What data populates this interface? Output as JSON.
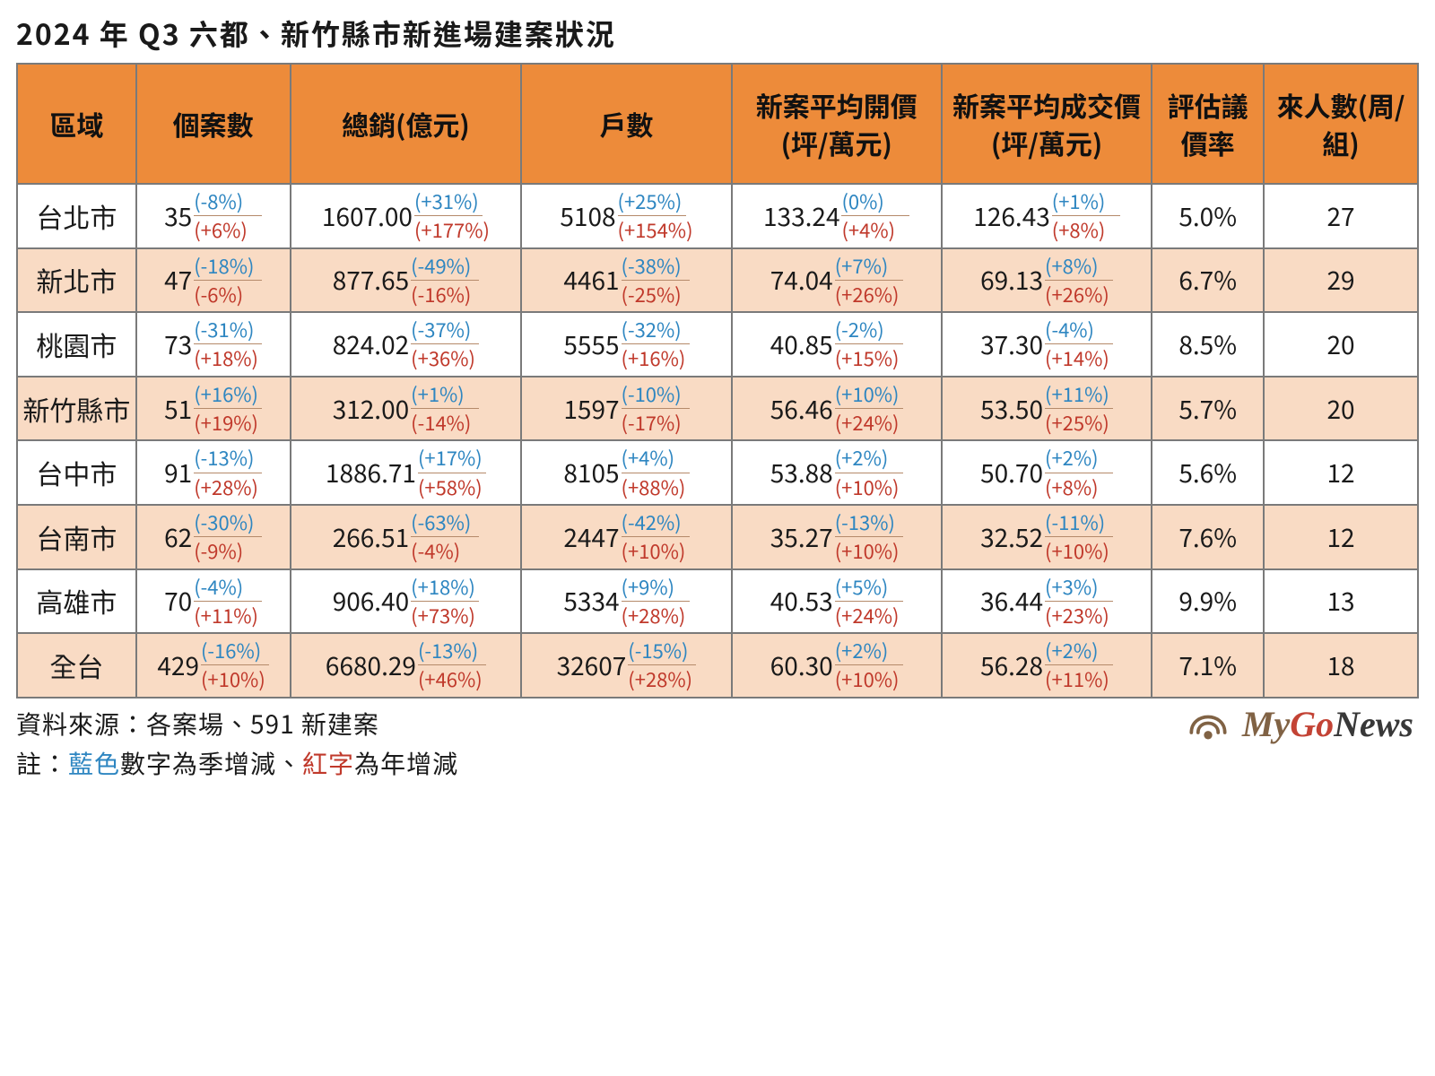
{
  "title": "2024 年 Q3 六都、新竹縣市新進場建案狀況",
  "source_line": "資料來源：各案場、591 新建案",
  "note": {
    "prefix": "註：",
    "blue_text": "藍色",
    "mid1": "數字為季增減、",
    "red_text": "紅字",
    "mid2": "為年增減"
  },
  "colors": {
    "header_bg": "#ed8b3a",
    "header_text": "#111111",
    "row_odd_bg": "#ffffff",
    "row_even_bg": "#f9dbc4",
    "quarter_delta": "#2e86c1",
    "year_delta": "#c0392b",
    "border": "#7a7a7a",
    "sep": "#b58a6a",
    "title_text": "#1a1a1a"
  },
  "logo": {
    "my": "My",
    "go": "Go",
    "news": "News"
  },
  "col_widths_pct": [
    8.5,
    11,
    16.5,
    15,
    15,
    15,
    8,
    11
  ],
  "columns": [
    {
      "label": "區域",
      "type": "region"
    },
    {
      "label": "個案數",
      "type": "delta"
    },
    {
      "label": "總銷(億元)",
      "type": "delta"
    },
    {
      "label": "戶數",
      "type": "delta"
    },
    {
      "label": "新案平均開價(坪/萬元)",
      "type": "delta"
    },
    {
      "label": "新案平均成交價(坪/萬元)",
      "type": "delta"
    },
    {
      "label": "評估議價率",
      "type": "simple"
    },
    {
      "label": "來人數(周/組)",
      "type": "simple"
    }
  ],
  "rows": [
    {
      "region": "台北市",
      "shade": "odd",
      "cases": {
        "v": "35",
        "q": "(-8%)",
        "y": "(+6%)"
      },
      "sales": {
        "v": "1607.00",
        "q": "(+31%)",
        "y": "(+177%)"
      },
      "units": {
        "v": "5108",
        "q": "(+25%)",
        "y": "(+154%)"
      },
      "ask": {
        "v": "133.24",
        "q": "(0%)",
        "y": "(+4%)"
      },
      "deal": {
        "v": "126.43",
        "q": "(+1%)",
        "y": "(+8%)"
      },
      "barg": "5.0%",
      "visitors": "27"
    },
    {
      "region": "新北市",
      "shade": "even",
      "cases": {
        "v": "47",
        "q": "(-18%)",
        "y": "(-6%)"
      },
      "sales": {
        "v": "877.65",
        "q": "(-49%)",
        "y": "(-16%)"
      },
      "units": {
        "v": "4461",
        "q": "(-38%)",
        "y": "(-25%)"
      },
      "ask": {
        "v": "74.04",
        "q": "(+7%)",
        "y": "(+26%)"
      },
      "deal": {
        "v": "69.13",
        "q": "(+8%)",
        "y": "(+26%)"
      },
      "barg": "6.7%",
      "visitors": "29"
    },
    {
      "region": "桃園市",
      "shade": "odd",
      "cases": {
        "v": "73",
        "q": "(-31%)",
        "y": "(+18%)"
      },
      "sales": {
        "v": "824.02",
        "q": "(-37%)",
        "y": "(+36%)"
      },
      "units": {
        "v": "5555",
        "q": "(-32%)",
        "y": "(+16%)"
      },
      "ask": {
        "v": "40.85",
        "q": "(-2%)",
        "y": "(+15%)"
      },
      "deal": {
        "v": "37.30",
        "q": "(-4%)",
        "y": "(+14%)"
      },
      "barg": "8.5%",
      "visitors": "20"
    },
    {
      "region": "新竹縣市",
      "shade": "even",
      "cases": {
        "v": "51",
        "q": "(+16%)",
        "y": "(+19%)"
      },
      "sales": {
        "v": "312.00",
        "q": "(+1%)",
        "y": "(-14%)"
      },
      "units": {
        "v": "1597",
        "q": "(-10%)",
        "y": "(-17%)"
      },
      "ask": {
        "v": "56.46",
        "q": "(+10%)",
        "y": "(+24%)"
      },
      "deal": {
        "v": "53.50",
        "q": "(+11%)",
        "y": "(+25%)"
      },
      "barg": "5.7%",
      "visitors": "20"
    },
    {
      "region": "台中市",
      "shade": "odd",
      "cases": {
        "v": "91",
        "q": "(-13%)",
        "y": "(+28%)"
      },
      "sales": {
        "v": "1886.71",
        "q": "(+17%)",
        "y": "(+58%)"
      },
      "units": {
        "v": "8105",
        "q": "(+4%)",
        "y": "(+88%)"
      },
      "ask": {
        "v": "53.88",
        "q": "(+2%)",
        "y": "(+10%)"
      },
      "deal": {
        "v": "50.70",
        "q": "(+2%)",
        "y": "(+8%)"
      },
      "barg": "5.6%",
      "visitors": "12"
    },
    {
      "region": "台南市",
      "shade": "even",
      "cases": {
        "v": "62",
        "q": "(-30%)",
        "y": "(-9%)"
      },
      "sales": {
        "v": "266.51",
        "q": "(-63%)",
        "y": "(-4%)"
      },
      "units": {
        "v": "2447",
        "q": "(-42%)",
        "y": "(+10%)"
      },
      "ask": {
        "v": "35.27",
        "q": "(-13%)",
        "y": "(+10%)"
      },
      "deal": {
        "v": "32.52",
        "q": "(-11%)",
        "y": "(+10%)"
      },
      "barg": "7.6%",
      "visitors": "12"
    },
    {
      "region": "高雄市",
      "shade": "odd",
      "cases": {
        "v": "70",
        "q": "(-4%)",
        "y": "(+11%)"
      },
      "sales": {
        "v": "906.40",
        "q": "(+18%)",
        "y": "(+73%)"
      },
      "units": {
        "v": "5334",
        "q": "(+9%)",
        "y": "(+28%)"
      },
      "ask": {
        "v": "40.53",
        "q": "(+5%)",
        "y": "(+24%)"
      },
      "deal": {
        "v": "36.44",
        "q": "(+3%)",
        "y": "(+23%)"
      },
      "barg": "9.9%",
      "visitors": "13"
    },
    {
      "region": "全台",
      "shade": "even",
      "cases": {
        "v": "429",
        "q": "(-16%)",
        "y": "(+10%)"
      },
      "sales": {
        "v": "6680.29",
        "q": "(-13%)",
        "y": "(+46%)"
      },
      "units": {
        "v": "32607",
        "q": "(-15%)",
        "y": "(+28%)"
      },
      "ask": {
        "v": "60.30",
        "q": "(+2%)",
        "y": "(+10%)"
      },
      "deal": {
        "v": "56.28",
        "q": "(+2%)",
        "y": "(+11%)"
      },
      "barg": "7.1%",
      "visitors": "18"
    }
  ]
}
